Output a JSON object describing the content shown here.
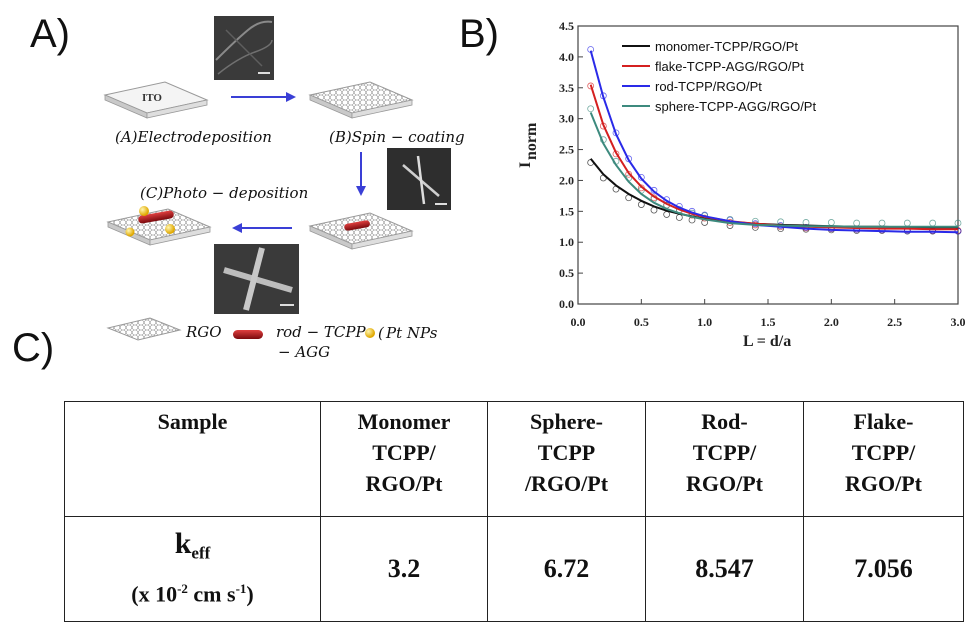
{
  "panels": {
    "a": "A)",
    "b": "B)",
    "c": "C)"
  },
  "schematic": {
    "substrate_label": "ITO",
    "step_a": "(A)Electrodeposition",
    "step_b": "(B)Spin − coating",
    "step_c": "(C)Photo − deposition",
    "legend_rgo": "RGO",
    "legend_rod_line1": "rod − TCPP",
    "legend_rod_line2": "− AGG",
    "legend_pt": "Pt NPs",
    "sem_images": [
      "sem-rgo-sheet-icon",
      "sem-nanorod-cross-small-icon",
      "sem-nanorod-cross-large-icon"
    ],
    "colors": {
      "arrow": "#3a3fd6",
      "rod": "#b0141a",
      "pt": "#f0c419"
    }
  },
  "chart_data": {
    "type": "line",
    "title": "",
    "xlabel": "L = d/a",
    "ylabel": "I",
    "ylabel_subscript": "norm",
    "xlim": [
      0.0,
      3.0
    ],
    "ylim": [
      0.0,
      4.5
    ],
    "xticks": [
      "0.0",
      "0.5",
      "1.0",
      "1.5",
      "2.0",
      "2.5",
      "3.0"
    ],
    "yticks": [
      "0.0",
      "0.5",
      "1.0",
      "1.5",
      "2.0",
      "2.5",
      "3.0",
      "3.5",
      "4.0",
      "4.5"
    ],
    "grid": false,
    "legend_position": "top-right",
    "x": [
      0.1,
      0.2,
      0.3,
      0.4,
      0.5,
      0.6,
      0.7,
      0.8,
      0.9,
      1.0,
      1.2,
      1.4,
      1.6,
      1.8,
      2.0,
      2.2,
      2.4,
      2.6,
      2.8,
      3.0
    ],
    "series": [
      {
        "name": "monomer-TCPP/RGO/Pt",
        "color": "#111111",
        "values": [
          2.35,
          2.1,
          1.92,
          1.78,
          1.67,
          1.58,
          1.51,
          1.46,
          1.42,
          1.38,
          1.33,
          1.3,
          1.28,
          1.27,
          1.26,
          1.25,
          1.25,
          1.24,
          1.24,
          1.24
        ]
      },
      {
        "name": "flake-TCPP-AGG/RGO/Pt",
        "color": "#d42020",
        "values": [
          3.55,
          2.9,
          2.45,
          2.12,
          1.9,
          1.74,
          1.62,
          1.53,
          1.46,
          1.41,
          1.34,
          1.3,
          1.27,
          1.25,
          1.24,
          1.23,
          1.22,
          1.22,
          1.21,
          1.21
        ]
      },
      {
        "name": "rod-TCPP/RGO/Pt",
        "color": "#2a2ae8",
        "values": [
          4.1,
          3.35,
          2.75,
          2.33,
          2.03,
          1.82,
          1.67,
          1.56,
          1.48,
          1.42,
          1.34,
          1.28,
          1.25,
          1.22,
          1.2,
          1.19,
          1.18,
          1.17,
          1.17,
          1.16
        ]
      },
      {
        "name": "sphere-TCPP-AGG/RGO/Pt",
        "color": "#3d8a7e",
        "values": [
          3.1,
          2.6,
          2.25,
          1.98,
          1.78,
          1.64,
          1.54,
          1.47,
          1.41,
          1.37,
          1.31,
          1.28,
          1.27,
          1.26,
          1.26,
          1.25,
          1.25,
          1.25,
          1.25,
          1.25
        ]
      }
    ]
  },
  "table": {
    "header": {
      "sample": "Sample",
      "monomer": [
        "Monomer",
        "TCPP/",
        "RGO/Pt"
      ],
      "sphere": [
        "Sphere-",
        "TCPP",
        "/RGO/Pt"
      ],
      "rod": [
        "Rod-",
        "TCPP/",
        "RGO/Pt"
      ],
      "flake": [
        "Flake-",
        "TCPP/",
        "RGO/Pt"
      ]
    },
    "keff": {
      "symbol": "k",
      "subscript": "eff",
      "unit_open": "(x 10",
      "exp1": "-2",
      "unit_mid": " cm s",
      "exp2": "-1",
      "unit_close": ")"
    },
    "values": {
      "monomer": "3.2",
      "sphere": "6.72",
      "rod": "8.547",
      "flake": "7.056"
    }
  }
}
